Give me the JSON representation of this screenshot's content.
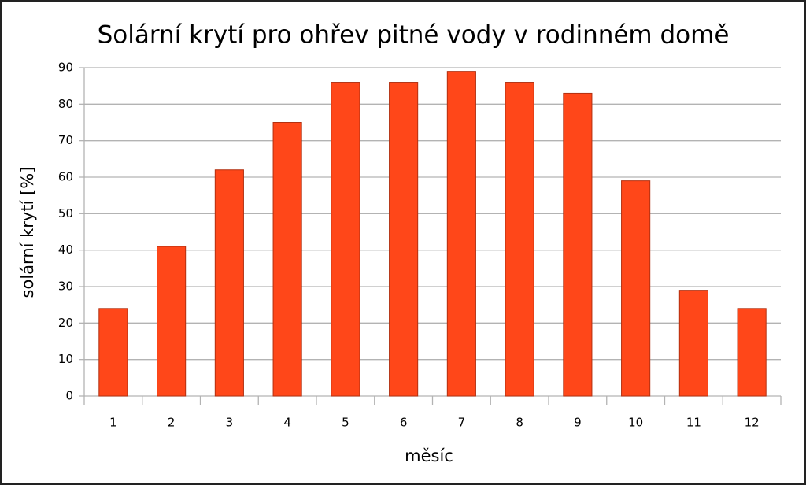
{
  "chart_data": {
    "type": "bar",
    "title": "Solární krytí pro ohřev pitné vody v rodinném domě",
    "xlabel": "měsíc",
    "ylabel": "solární krytí [%]",
    "categories": [
      "1",
      "2",
      "3",
      "4",
      "5",
      "6",
      "7",
      "8",
      "9",
      "10",
      "11",
      "12"
    ],
    "values": [
      24,
      41,
      62,
      75,
      86,
      86,
      89,
      86,
      83,
      59,
      29,
      24
    ],
    "color": "#ff4719",
    "ylim": [
      0,
      90
    ],
    "yticks": [
      0,
      10,
      20,
      30,
      40,
      50,
      60,
      70,
      80,
      90
    ],
    "grid": true
  }
}
